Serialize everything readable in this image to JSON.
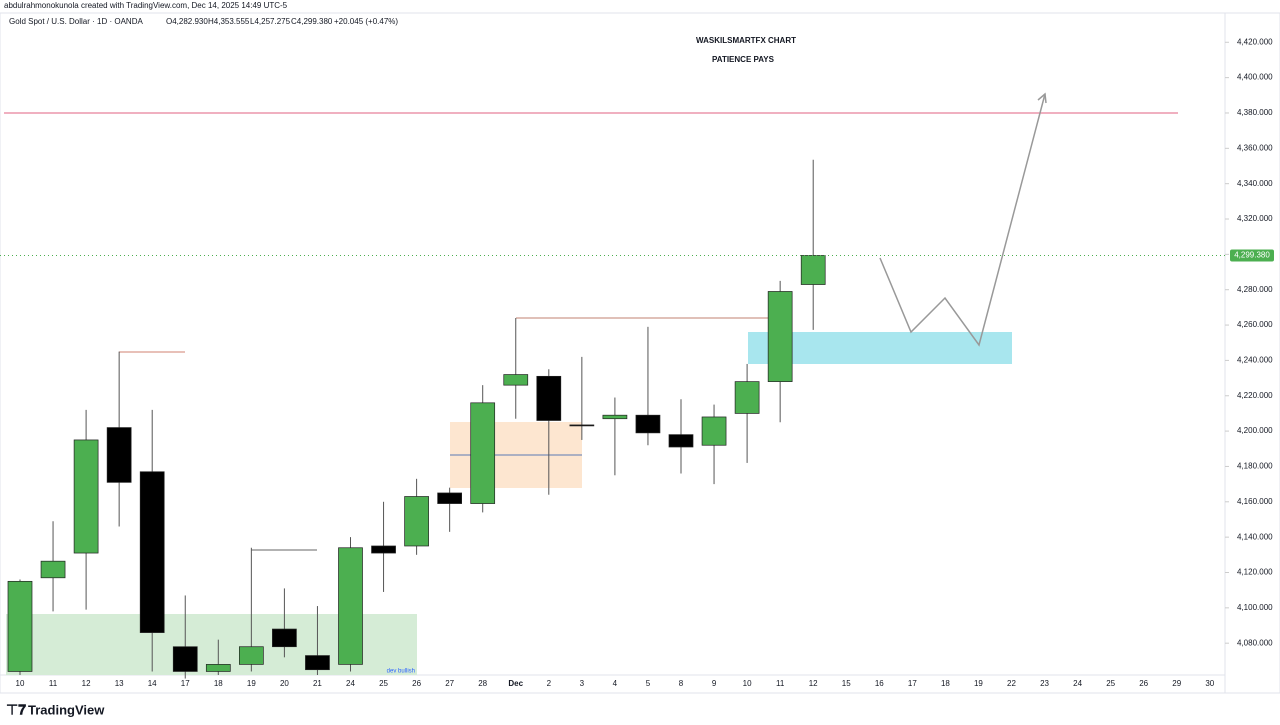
{
  "header": {
    "author_line": "abdulrahmonokunola created with TradingView.com, Dec 14, 2025 14:49 UTC-5",
    "symbol": "Gold Spot / U.S. Dollar · 1D · OANDA",
    "ohlc_labels": [
      "O4,282.930",
      "H4,353.555",
      "L4,257.275",
      "C4,299.380"
    ],
    "change": "+20.045 (+0.47%)"
  },
  "chart_data": {
    "type": "candlestick",
    "title": "WASKILSMARTFX CHART",
    "subtitle": "PATIENCE PAYS",
    "annotation": "dev bullish",
    "categories": [
      "10",
      "11",
      "12",
      "13",
      "14",
      "17",
      "18",
      "19",
      "20",
      "21",
      "24",
      "25",
      "26",
      "27",
      "28",
      "Dec",
      "2",
      "3",
      "4",
      "5",
      "8",
      "9",
      "10",
      "11",
      "12",
      "15",
      "16",
      "17",
      "18",
      "19",
      "22",
      "23",
      "24",
      "25",
      "26",
      "29",
      "30"
    ],
    "open": [
      4064,
      4117,
      4131,
      4202,
      4177,
      4078,
      4064,
      4068,
      4088,
      4073,
      4068,
      4135,
      4135,
      4165,
      4159,
      4226,
      4231,
      4203.5,
      4207,
      4209,
      4198,
      4192,
      4210,
      4228,
      4282.93,
      null,
      null,
      null,
      null,
      null,
      null,
      null,
      null,
      null,
      null,
      null,
      null
    ],
    "high": [
      4116,
      4149,
      4212,
      4245,
      4212,
      4107,
      4082,
      4134,
      4111,
      4101,
      4140,
      4160,
      4173,
      4168,
      4226,
      4264,
      4235,
      4242,
      4219,
      4259,
      4218,
      4215,
      4238,
      4285,
      4353.555,
      null,
      null,
      null,
      null,
      null,
      null,
      null,
      null,
      null,
      null,
      null,
      null
    ],
    "low": [
      4062,
      4098,
      4099,
      4146,
      4064,
      4060,
      4062,
      4064,
      4072,
      4062,
      4064,
      4109,
      4130,
      4143,
      4154,
      4207,
      4164,
      4195,
      4175,
      4192,
      4176,
      4170,
      4182,
      4205,
      4257.275,
      null,
      null,
      null,
      null,
      null,
      null,
      null,
      null,
      null,
      null,
      null,
      null
    ],
    "close": [
      4115,
      4126.4,
      4195,
      4171,
      4086,
      4064,
      4068,
      4078,
      4078,
      4065,
      4134,
      4131,
      4163,
      4159,
      4216,
      4232,
      4206,
      4203,
      4209,
      4199,
      4191,
      4208,
      4228,
      4279,
      4299.38,
      null,
      null,
      null,
      null,
      null,
      null,
      null,
      null,
      null,
      null,
      null,
      null
    ],
    "up_color": "#4caf50",
    "down_color": "#000000",
    "last_price": {
      "value": 4299.38,
      "label": "4,299.380"
    },
    "ylim": [
      4062,
      4436
    ],
    "yticks": [
      {
        "value": 4080,
        "label": "4,080.000"
      },
      {
        "value": 4100,
        "label": "4,100.000"
      },
      {
        "value": 4120,
        "label": "4,120.000"
      },
      {
        "value": 4140,
        "label": "4,140.000"
      },
      {
        "value": 4160,
        "label": "4,160.000"
      },
      {
        "value": 4180,
        "label": "4,180.000"
      },
      {
        "value": 4200,
        "label": "4,200.000"
      },
      {
        "value": 4220,
        "label": "4,220.000"
      },
      {
        "value": 4240,
        "label": "4,240.000"
      },
      {
        "value": 4260,
        "label": "4,260.000"
      },
      {
        "value": 4280,
        "label": "4,280.000"
      },
      {
        "value": 4300,
        "label": "4,300.000"
      },
      {
        "value": 4320,
        "label": "4,320.000"
      },
      {
        "value": 4340,
        "label": "4,340.000"
      },
      {
        "value": 4360,
        "label": "4,360.000"
      },
      {
        "value": 4380,
        "label": "4,380.000"
      },
      {
        "value": 4400,
        "label": "4,400.000"
      },
      {
        "value": 4420,
        "label": "4,420.000"
      }
    ]
  },
  "footer": {
    "brand": "TradingView"
  }
}
